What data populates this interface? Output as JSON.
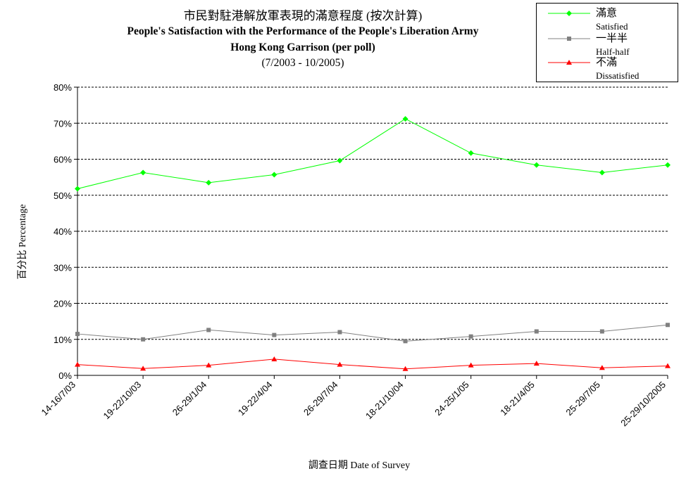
{
  "chart_data": {
    "type": "line",
    "title_zh": "市民對駐港解放軍表現的滿意程度 (按次計算)",
    "title_en_line1": "People's Satisfaction with the Performance of the People's Liberation Army",
    "title_en_line2": "Hong Kong Garrison (per poll)",
    "title_range": "(7/2003 - 10/2005)",
    "ylabel": "百分比 Percentage",
    "xlabel": "調查日期 Date of Survey",
    "ylim": [
      0,
      80
    ],
    "yticks": [
      "0%",
      "10%",
      "20%",
      "30%",
      "40%",
      "50%",
      "60%",
      "70%",
      "80%"
    ],
    "grid": true,
    "legend_position": "top-right",
    "categories": [
      "14-16/7/03",
      "19-22/10/03",
      "26-29/1/04",
      "19-22/4/04",
      "26-29/7/04",
      "18-21/10/04",
      "24-25/1/05",
      "18-21/4/05",
      "25-29/7/05",
      "25-29/10/2005"
    ],
    "series": [
      {
        "name_zh": "滿意",
        "name_en": "Satisfied",
        "color": "#00ff00",
        "marker": "diamond",
        "values": [
          51.8,
          56.3,
          53.5,
          55.7,
          59.6,
          71.2,
          61.7,
          58.4,
          56.3,
          58.4
        ]
      },
      {
        "name_zh": "一半半",
        "name_en": "Half-half",
        "color": "#808080",
        "marker": "square",
        "values": [
          11.5,
          10.0,
          12.6,
          11.2,
          12.0,
          9.5,
          10.8,
          12.2,
          12.2,
          14.0
        ]
      },
      {
        "name_zh": "不滿",
        "name_en": "Dissatisfied",
        "color": "#ff0000",
        "marker": "triangle",
        "values": [
          3.0,
          1.9,
          2.8,
          4.5,
          3.0,
          1.8,
          2.8,
          3.3,
          2.1,
          2.6
        ]
      }
    ]
  }
}
